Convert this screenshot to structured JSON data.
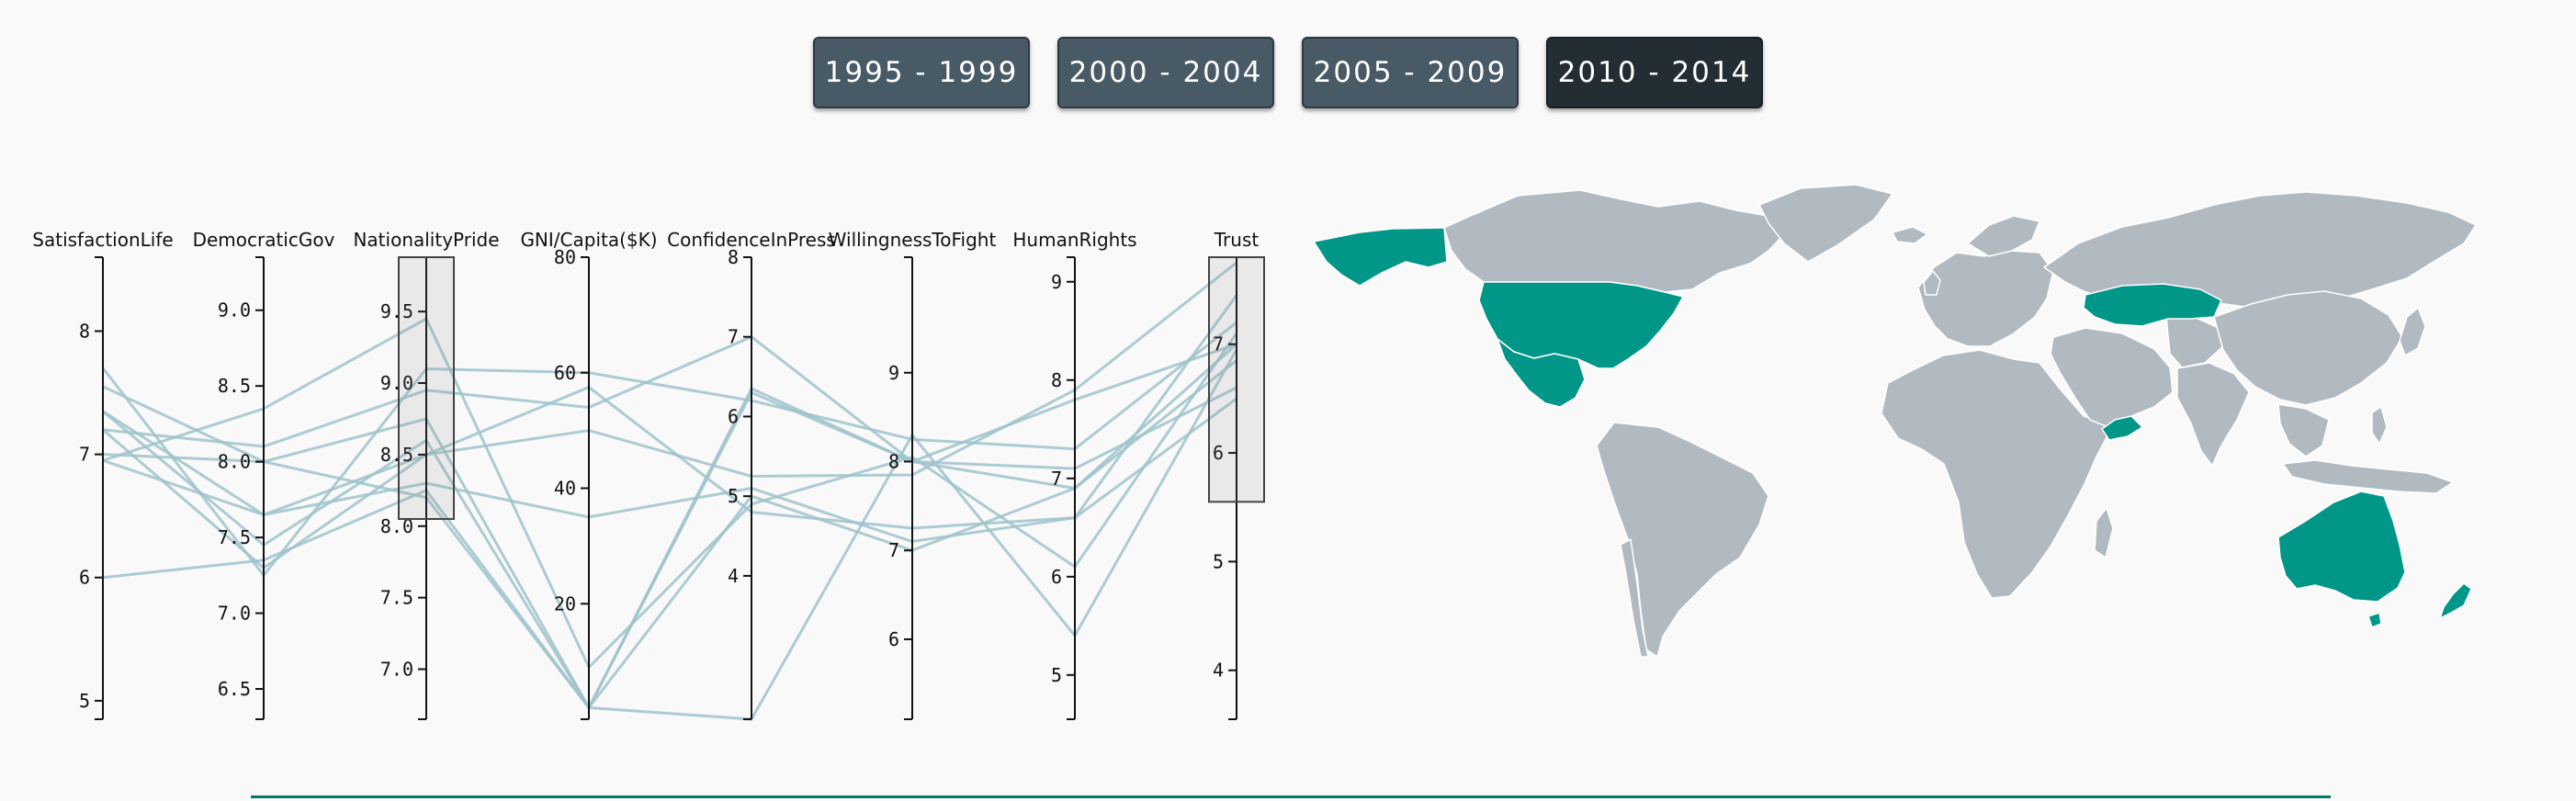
{
  "periods": {
    "p1": "1995 - 1999",
    "p2": "2000 - 2004",
    "p3": "2005 - 2009",
    "p4": "2010 - 2014",
    "active": "2010 - 2014"
  },
  "colors": {
    "background": "#f9f9f9",
    "button": "#475a66",
    "button_active": "#232e34",
    "line": "#9fc3cb",
    "selected_country": "#009688",
    "country": "#b0bac0",
    "rule": "#00796b"
  },
  "chart_data": {
    "type": "parallel-coordinates",
    "axes": [
      {
        "name": "SatisfactionLife",
        "domain": [
          4.85,
          8.6
        ],
        "ticks": [
          5,
          6,
          7,
          8
        ],
        "decimals": 0
      },
      {
        "name": "DemocraticGov",
        "domain": [
          6.3,
          9.35
        ],
        "ticks": [
          6.5,
          7.0,
          7.5,
          8.0,
          8.5,
          9.0
        ],
        "decimals": 1
      },
      {
        "name": "NationalityPride",
        "domain": [
          6.65,
          9.88
        ],
        "ticks": [
          7.0,
          7.5,
          8.0,
          8.5,
          9.0,
          9.5
        ],
        "decimals": 1
      },
      {
        "name": "GNI/Capita($K)",
        "domain": [
          0,
          80
        ],
        "ticks": [
          20,
          40,
          60,
          80
        ],
        "decimals": 0
      },
      {
        "name": "ConfidenceInPress",
        "domain": [
          2.2,
          8
        ],
        "ticks": [
          4,
          5,
          6,
          7,
          8
        ],
        "decimals": 0
      },
      {
        "name": "WillingnessToFight",
        "domain": [
          5.1,
          10.3
        ],
        "ticks": [
          6,
          7,
          8,
          9
        ],
        "decimals": 0
      },
      {
        "name": "HumanRights",
        "domain": [
          4.55,
          9.25
        ],
        "ticks": [
          5,
          6,
          7,
          8,
          9
        ],
        "decimals": 0
      },
      {
        "name": "Trust",
        "domain": [
          3.55,
          7.8
        ],
        "ticks": [
          4,
          5,
          6,
          7
        ],
        "decimals": 0
      }
    ],
    "brushes": [
      {
        "axis": "NationalityPride",
        "range": [
          8.05,
          9.88
        ]
      },
      {
        "axis": "Trust",
        "range": [
          5.55,
          7.8
        ]
      }
    ],
    "records": [
      [
        7.55,
        8.0,
        8.2,
        2.0,
        6.35,
        8.0,
        6.9,
        6.85
      ],
      [
        7.35,
        7.45,
        8.6,
        2.0,
        5.0,
        7.0,
        6.9,
        7.0
      ],
      [
        7.2,
        7.3,
        8.5,
        57.5,
        4.8,
        7.25,
        6.6,
        6.5
      ],
      [
        7.2,
        8.1,
        8.95,
        54.0,
        7.0,
        8.0,
        7.1,
        6.6
      ],
      [
        7.0,
        8.0,
        8.75,
        2.0,
        6.3,
        8.0,
        7.8,
        7.0
      ],
      [
        6.95,
        8.35,
        9.45,
        9.0,
        4.9,
        8.05,
        6.1,
        7.1
      ],
      [
        7.35,
        7.65,
        8.3,
        35.0,
        5.1,
        7.1,
        6.6,
        7.45
      ],
      [
        6.95,
        7.65,
        8.5,
        50.0,
        5.25,
        7.85,
        7.9,
        7.75
      ],
      [
        6.0,
        7.35,
        8.25,
        2.0,
        2.2,
        8.3,
        5.4,
        6.95
      ],
      [
        7.7,
        7.25,
        9.1,
        60.0,
        6.2,
        8.25,
        7.3,
        7.2
      ]
    ]
  }
}
